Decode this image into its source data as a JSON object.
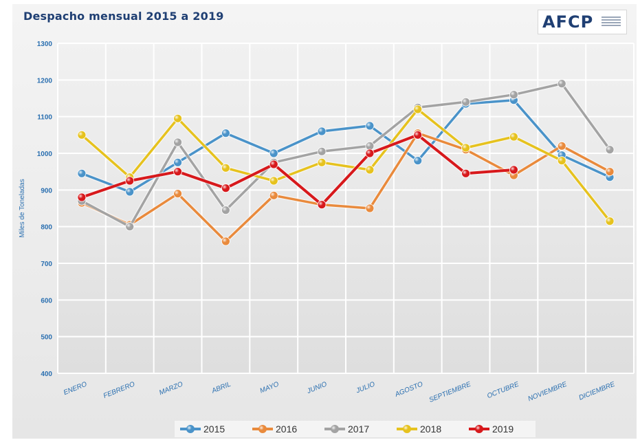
{
  "title": "Despacho mensual 2015 a 2019",
  "logo": {
    "text": "AFCP",
    "name": "afcp-logo-icon"
  },
  "colors": {
    "2015": "#4a93c9",
    "2016": "#e98a3c",
    "2017": "#a3a3a3",
    "2018": "#e6c21e",
    "2019": "#d7191c"
  },
  "chart_data": {
    "type": "line",
    "title": "Despacho mensual 2015 a 2019",
    "xlabel": "",
    "ylabel": "Miles de Toneladas",
    "ylim": [
      400,
      1300
    ],
    "yticks": [
      "1300",
      "1200",
      "1100",
      "1000",
      "900",
      "800",
      "700",
      "600",
      "500",
      "400"
    ],
    "grid": true,
    "legend": "bottom",
    "categories": [
      "ENERO",
      "FEBRERO",
      "MARZO",
      "ABRIL",
      "MAYO",
      "JUNIO",
      "JULIO",
      "AGOSTO",
      "SEPTIEMBRE",
      "OCTUBRE",
      "NOVIEMBRE",
      "DICIEMBRE"
    ],
    "series": [
      {
        "name": "2015",
        "values": [
          945,
          895,
          975,
          1055,
          1000,
          1060,
          1075,
          980,
          1135,
          1145,
          995,
          935
        ]
      },
      {
        "name": "2016",
        "values": [
          865,
          805,
          890,
          760,
          885,
          860,
          850,
          1055,
          1010,
          940,
          1020,
          950
        ]
      },
      {
        "name": "2017",
        "values": [
          870,
          800,
          1030,
          845,
          975,
          1005,
          1020,
          1125,
          1140,
          1160,
          1190,
          1010
        ]
      },
      {
        "name": "2018",
        "values": [
          1050,
          935,
          1095,
          960,
          925,
          975,
          955,
          1120,
          1015,
          1045,
          980,
          815
        ]
      },
      {
        "name": "2019",
        "values": [
          880,
          925,
          950,
          905,
          970,
          860,
          1000,
          1050,
          945,
          955,
          null,
          null
        ]
      }
    ]
  }
}
